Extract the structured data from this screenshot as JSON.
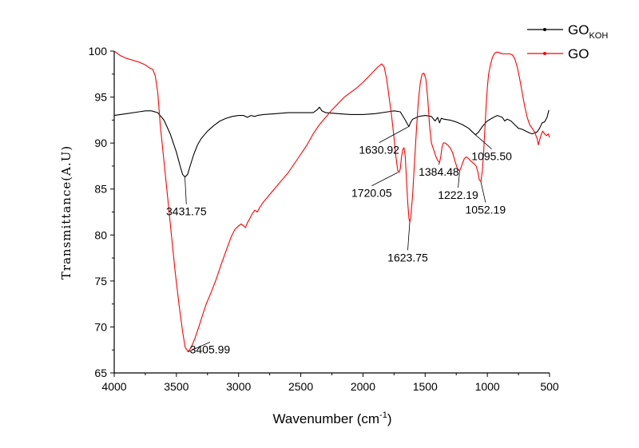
{
  "chart_data": {
    "type": "line",
    "xlabel": "Wavenumber (cm",
    "xlabel_sup": "-1",
    "xlabel_end": ")",
    "ylabel": "Transmittance(A.U)",
    "xlim": [
      4000,
      500
    ],
    "ylim": [
      65,
      100
    ],
    "x_ticks": [
      4000,
      3500,
      3000,
      2500,
      2000,
      1500,
      1000,
      500
    ],
    "y_ticks": [
      65,
      70,
      75,
      80,
      85,
      90,
      95,
      100
    ],
    "legend_position": "top-right",
    "legend": [
      {
        "label": "GO",
        "sub": "KOH",
        "color": "#000000"
      },
      {
        "label": "GO",
        "sub": "",
        "color": "#ff0000"
      }
    ],
    "series": [
      {
        "name": "GO_KOH",
        "color": "#000000",
        "points": [
          [
            4000,
            93.0
          ],
          [
            3900,
            93.2
          ],
          [
            3800,
            93.4
          ],
          [
            3750,
            93.5
          ],
          [
            3700,
            93.5
          ],
          [
            3650,
            93.3
          ],
          [
            3600,
            92.5
          ],
          [
            3550,
            91.0
          ],
          [
            3500,
            89.0
          ],
          [
            3470,
            87.5
          ],
          [
            3450,
            86.6
          ],
          [
            3431.75,
            86.3
          ],
          [
            3410,
            86.6
          ],
          [
            3390,
            87.5
          ],
          [
            3360,
            88.8
          ],
          [
            3330,
            89.8
          ],
          [
            3300,
            90.5
          ],
          [
            3250,
            91.3
          ],
          [
            3200,
            91.9
          ],
          [
            3150,
            92.4
          ],
          [
            3100,
            92.7
          ],
          [
            3050,
            92.9
          ],
          [
            3000,
            93.0
          ],
          [
            2960,
            93.0
          ],
          [
            2930,
            92.8
          ],
          [
            2900,
            93.0
          ],
          [
            2870,
            92.9
          ],
          [
            2850,
            93.0
          ],
          [
            2800,
            93.1
          ],
          [
            2700,
            93.2
          ],
          [
            2600,
            93.3
          ],
          [
            2500,
            93.3
          ],
          [
            2400,
            93.3
          ],
          [
            2370,
            93.6
          ],
          [
            2350,
            93.9
          ],
          [
            2330,
            93.5
          ],
          [
            2300,
            93.3
          ],
          [
            2200,
            93.2
          ],
          [
            2100,
            93.1
          ],
          [
            2000,
            93.1
          ],
          [
            1900,
            93.2
          ],
          [
            1800,
            93.4
          ],
          [
            1750,
            93.5
          ],
          [
            1700,
            93.4
          ],
          [
            1660,
            92.5
          ],
          [
            1640,
            92.0
          ],
          [
            1630.92,
            91.8
          ],
          [
            1615,
            92.3
          ],
          [
            1600,
            92.6
          ],
          [
            1550,
            92.9
          ],
          [
            1500,
            93.0
          ],
          [
            1450,
            92.9
          ],
          [
            1420,
            92.4
          ],
          [
            1400,
            92.8
          ],
          [
            1384.48,
            92.2
          ],
          [
            1370,
            92.7
          ],
          [
            1350,
            92.6
          ],
          [
            1300,
            92.5
          ],
          [
            1250,
            92.3
          ],
          [
            1200,
            92.0
          ],
          [
            1150,
            91.6
          ],
          [
            1120,
            91.2
          ],
          [
            1095.5,
            90.9
          ],
          [
            1070,
            91.2
          ],
          [
            1040,
            91.8
          ],
          [
            1000,
            92.4
          ],
          [
            950,
            92.8
          ],
          [
            920,
            93.0
          ],
          [
            880,
            92.8
          ],
          [
            860,
            92.4
          ],
          [
            840,
            92.6
          ],
          [
            810,
            92.4
          ],
          [
            780,
            92.0
          ],
          [
            750,
            91.6
          ],
          [
            720,
            91.5
          ],
          [
            690,
            91.3
          ],
          [
            660,
            91.1
          ],
          [
            640,
            91.0
          ],
          [
            620,
            91.1
          ],
          [
            600,
            91.2
          ],
          [
            580,
            91.6
          ],
          [
            560,
            92.2
          ],
          [
            540,
            92.3
          ],
          [
            520,
            92.8
          ],
          [
            505,
            93.6
          ]
        ]
      },
      {
        "name": "GO",
        "color": "#ff0000",
        "points": [
          [
            4000,
            100.0
          ],
          [
            3950,
            99.5
          ],
          [
            3900,
            99.2
          ],
          [
            3850,
            99.0
          ],
          [
            3800,
            98.8
          ],
          [
            3750,
            98.5
          ],
          [
            3720,
            98.2
          ],
          [
            3690,
            98.0
          ],
          [
            3670,
            97.3
          ],
          [
            3650,
            95.5
          ],
          [
            3630,
            92.0
          ],
          [
            3600,
            88.0
          ],
          [
            3570,
            84.0
          ],
          [
            3540,
            80.0
          ],
          [
            3510,
            76.0
          ],
          [
            3480,
            72.5
          ],
          [
            3450,
            69.5
          ],
          [
            3430,
            67.8
          ],
          [
            3405.99,
            67.3
          ],
          [
            3380,
            67.8
          ],
          [
            3350,
            68.8
          ],
          [
            3320,
            70.0
          ],
          [
            3290,
            71.3
          ],
          [
            3260,
            72.5
          ],
          [
            3220,
            73.8
          ],
          [
            3180,
            75.2
          ],
          [
            3140,
            76.8
          ],
          [
            3100,
            78.3
          ],
          [
            3060,
            79.8
          ],
          [
            3030,
            80.6
          ],
          [
            3000,
            81.0
          ],
          [
            2980,
            81.2
          ],
          [
            2960,
            81.0
          ],
          [
            2945,
            80.8
          ],
          [
            2930,
            81.3
          ],
          [
            2910,
            81.8
          ],
          [
            2890,
            82.3
          ],
          [
            2870,
            82.7
          ],
          [
            2850,
            82.5
          ],
          [
            2830,
            83.0
          ],
          [
            2800,
            83.6
          ],
          [
            2750,
            84.4
          ],
          [
            2700,
            85.2
          ],
          [
            2650,
            86.0
          ],
          [
            2600,
            86.8
          ],
          [
            2550,
            87.8
          ],
          [
            2500,
            88.8
          ],
          [
            2450,
            89.8
          ],
          [
            2400,
            91.0
          ],
          [
            2350,
            92.0
          ],
          [
            2300,
            92.8
          ],
          [
            2250,
            93.6
          ],
          [
            2200,
            94.3
          ],
          [
            2150,
            95.0
          ],
          [
            2100,
            95.5
          ],
          [
            2050,
            96.0
          ],
          [
            2000,
            96.6
          ],
          [
            1950,
            97.3
          ],
          [
            1900,
            98.0
          ],
          [
            1870,
            98.4
          ],
          [
            1850,
            98.6
          ],
          [
            1830,
            98.3
          ],
          [
            1810,
            97.0
          ],
          [
            1790,
            95.0
          ],
          [
            1770,
            93.0
          ],
          [
            1750,
            90.5
          ],
          [
            1735,
            88.5
          ],
          [
            1720.05,
            87.0
          ],
          [
            1710,
            86.8
          ],
          [
            1700,
            87.2
          ],
          [
            1690,
            88.5
          ],
          [
            1680,
            89.3
          ],
          [
            1670,
            89.5
          ],
          [
            1660,
            88.5
          ],
          [
            1650,
            86.0
          ],
          [
            1640,
            83.5
          ],
          [
            1630,
            81.8
          ],
          [
            1623.75,
            81.4
          ],
          [
            1615,
            82.0
          ],
          [
            1600,
            84.5
          ],
          [
            1585,
            88.0
          ],
          [
            1570,
            91.5
          ],
          [
            1555,
            94.5
          ],
          [
            1540,
            96.5
          ],
          [
            1525,
            97.5
          ],
          [
            1510,
            97.6
          ],
          [
            1495,
            97.0
          ],
          [
            1480,
            95.0
          ],
          [
            1465,
            92.0
          ],
          [
            1450,
            90.0
          ],
          [
            1430,
            89.2
          ],
          [
            1415,
            88.6
          ],
          [
            1400,
            88.1
          ],
          [
            1384.48,
            87.9
          ],
          [
            1375,
            88.5
          ],
          [
            1365,
            89.5
          ],
          [
            1355,
            90.0
          ],
          [
            1340,
            90.0
          ],
          [
            1320,
            89.8
          ],
          [
            1300,
            89.5
          ],
          [
            1280,
            89.0
          ],
          [
            1260,
            88.0
          ],
          [
            1240,
            87.2
          ],
          [
            1222.19,
            87.0
          ],
          [
            1210,
            87.4
          ],
          [
            1200,
            87.8
          ],
          [
            1185,
            88.3
          ],
          [
            1170,
            88.5
          ],
          [
            1150,
            88.3
          ],
          [
            1130,
            88.0
          ],
          [
            1110,
            87.8
          ],
          [
            1090,
            87.5
          ],
          [
            1075,
            86.8
          ],
          [
            1065,
            86.0
          ],
          [
            1052.19,
            85.8
          ],
          [
            1040,
            87.0
          ],
          [
            1030,
            89.0
          ],
          [
            1020,
            91.5
          ],
          [
            1010,
            94.0
          ],
          [
            1000,
            96.0
          ],
          [
            990,
            97.5
          ],
          [
            975,
            98.5
          ],
          [
            960,
            99.3
          ],
          [
            940,
            99.8
          ],
          [
            920,
            99.9
          ],
          [
            900,
            99.8
          ],
          [
            880,
            99.7
          ],
          [
            850,
            99.7
          ],
          [
            820,
            99.7
          ],
          [
            800,
            99.6
          ],
          [
            780,
            99.2
          ],
          [
            760,
            98.3
          ],
          [
            740,
            97.0
          ],
          [
            720,
            95.5
          ],
          [
            700,
            94.0
          ],
          [
            680,
            92.8
          ],
          [
            660,
            92.0
          ],
          [
            640,
            91.6
          ],
          [
            620,
            91.2
          ],
          [
            600,
            90.5
          ],
          [
            590,
            89.8
          ],
          [
            580,
            90.3
          ],
          [
            570,
            90.8
          ],
          [
            555,
            91.3
          ],
          [
            540,
            91.0
          ],
          [
            525,
            90.8
          ],
          [
            510,
            91.0
          ],
          [
            500,
            90.6
          ]
        ]
      }
    ],
    "annotations": [
      {
        "text": "3431.75",
        "x": 3431.75,
        "y": 86.3,
        "tx": 3420,
        "ty": 83.0
      },
      {
        "text": "3405.99",
        "x": 3405.99,
        "y": 67.3,
        "tx": 3230,
        "ty": 68.0
      },
      {
        "text": "1630.92",
        "x": 1630.92,
        "y": 91.8,
        "tx": 1870,
        "ty": 89.7
      },
      {
        "text": "1720.05",
        "x": 1720.05,
        "y": 86.8,
        "tx": 1930,
        "ty": 85.0
      },
      {
        "text": "1623.75",
        "x": 1623.75,
        "y": 81.4,
        "tx": 1640,
        "ty": 78.0
      },
      {
        "text": "1384.48",
        "x": 1384.48,
        "y": 87.9,
        "tx": 1390,
        "ty": 87.3
      },
      {
        "text": "1222.19",
        "x": 1222.19,
        "y": 87.0,
        "tx": 1235,
        "ty": 84.8
      },
      {
        "text": "1052.19",
        "x": 1052.19,
        "y": 85.8,
        "tx": 1015,
        "ty": 83.2
      },
      {
        "text": "1095.50",
        "x": 1095.5,
        "y": 90.9,
        "tx": 965,
        "ty": 89.0
      }
    ]
  }
}
